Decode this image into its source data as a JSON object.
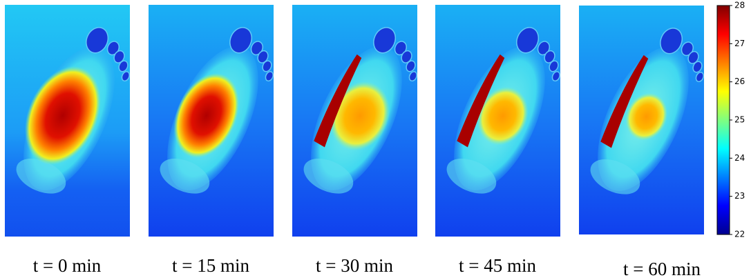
{
  "panels": [
    {
      "label": "t = 0 min"
    },
    {
      "label": "t = 15 min"
    },
    {
      "label": "t = 30 min"
    },
    {
      "label": "t = 45 min"
    },
    {
      "label": "t = 60 min"
    }
  ],
  "colorbar": {
    "lim": [
      22,
      28
    ],
    "ticks": [
      22,
      23,
      24,
      25,
      26,
      27,
      28
    ]
  }
}
